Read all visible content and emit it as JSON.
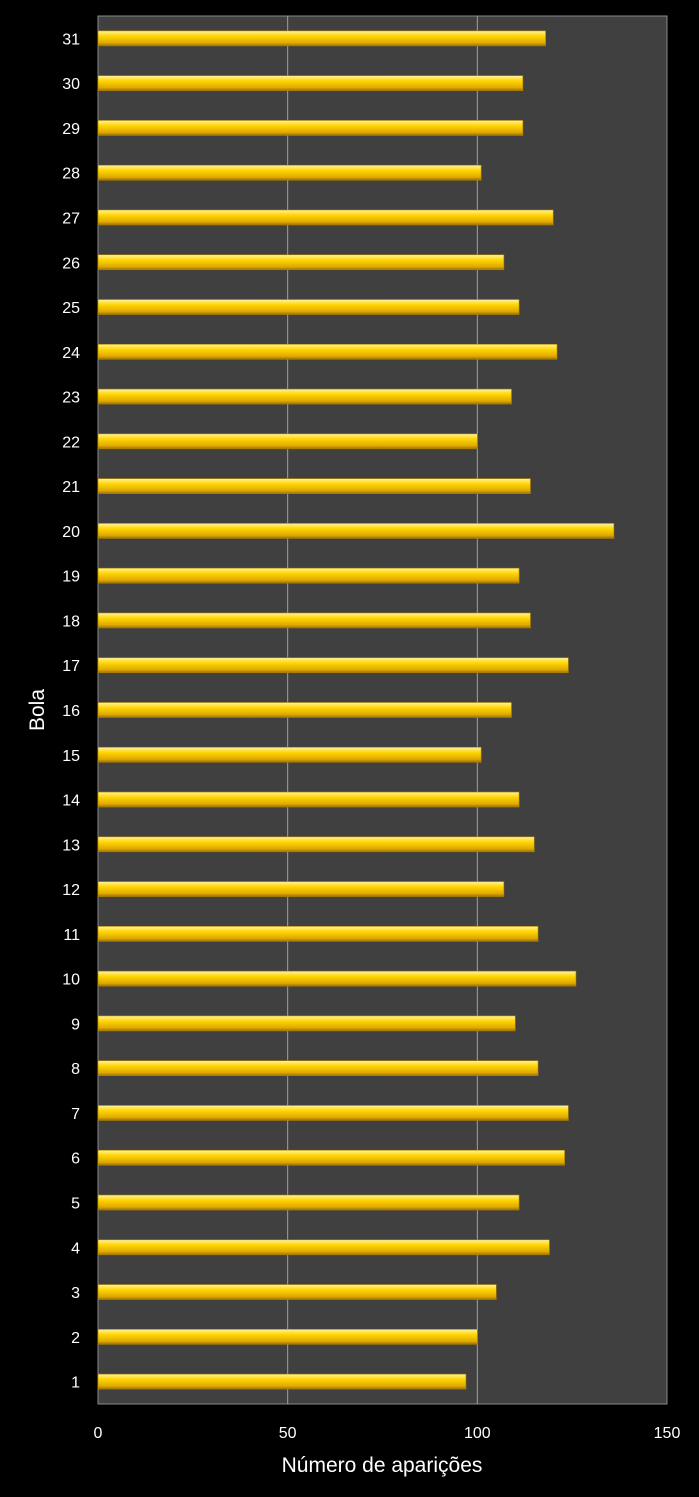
{
  "chart_data": {
    "type": "bar",
    "orientation": "horizontal",
    "title": "",
    "xlabel": "Número de aparições",
    "ylabel": "Bola",
    "xlim": [
      0,
      150
    ],
    "xticks": [
      0,
      50,
      100,
      150
    ],
    "grid": true,
    "categories": [
      "1",
      "2",
      "3",
      "4",
      "5",
      "6",
      "7",
      "8",
      "9",
      "10",
      "11",
      "12",
      "13",
      "14",
      "15",
      "16",
      "17",
      "18",
      "19",
      "20",
      "21",
      "22",
      "23",
      "24",
      "25",
      "26",
      "27",
      "28",
      "29",
      "30",
      "31"
    ],
    "values": [
      97,
      100,
      105,
      119,
      111,
      123,
      124,
      116,
      110,
      126,
      116,
      107,
      115,
      111,
      101,
      109,
      124,
      114,
      111,
      136,
      114,
      100,
      109,
      121,
      111,
      107,
      120,
      101,
      112,
      112,
      118
    ],
    "colors": {
      "bar": "#ffcc00",
      "plot_bg": "#404040",
      "background": "#000000",
      "grid": "#a0a0a0"
    }
  }
}
